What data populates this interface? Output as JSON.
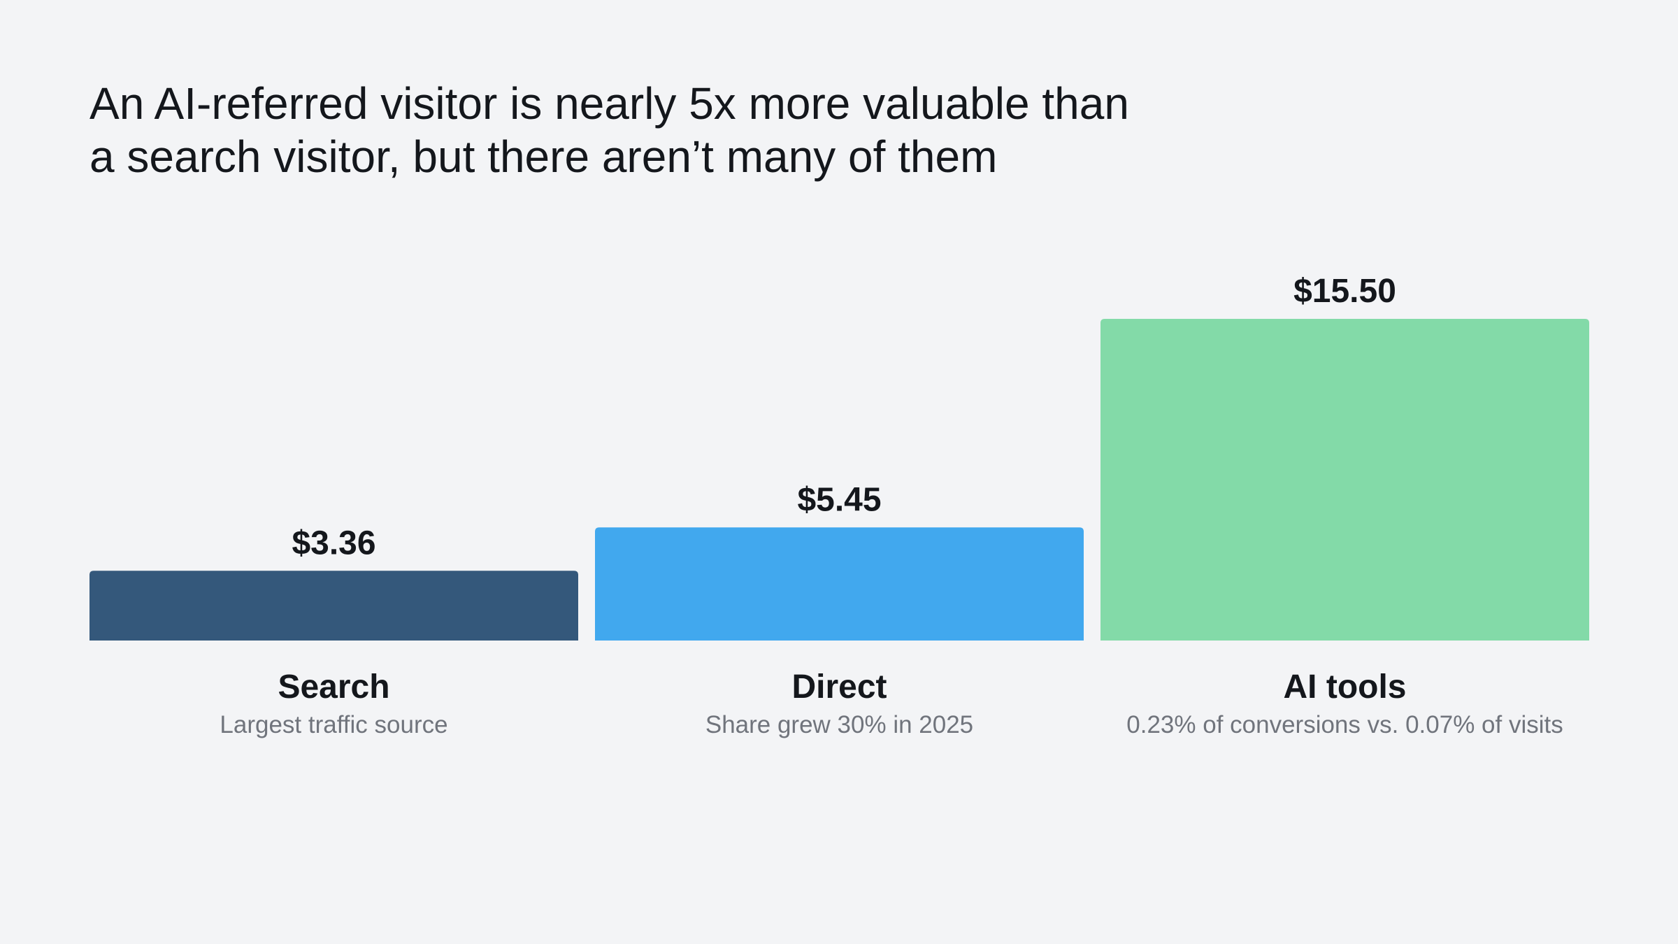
{
  "chart_data": {
    "type": "bar",
    "title_lines": [
      "An AI-referred visitor is nearly 5x more valuable than",
      "a search visitor, but there aren’t many of them"
    ],
    "categories": [
      "Search",
      "Direct",
      "AI tools"
    ],
    "category_sublabels": [
      "Largest traffic source",
      "Share grew 30% in 2025",
      "0.23% of conversions vs. 0.07% of visits"
    ],
    "values": [
      3.36,
      5.45,
      15.5
    ],
    "value_labels": [
      "$3.36",
      "$5.45",
      "$15.50"
    ],
    "colors": [
      "#34587b",
      "#41a8ee",
      "#83daa8"
    ],
    "ylim": [
      0,
      15.5
    ],
    "grid": false,
    "legend": "none",
    "xlabel": "",
    "ylabel": ""
  }
}
